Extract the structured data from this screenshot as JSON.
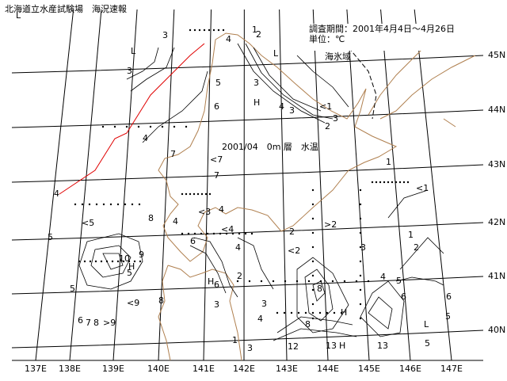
{
  "header": {
    "title": "北海道立水産試験場　海況速報"
  },
  "info": {
    "period": "調査期間：2001年4月4日～4月26日",
    "unit": "単位：℃",
    "ice": "海氷域"
  },
  "map": {
    "title": "2001/04　0m 層　水温",
    "lon_labels": [
      "137E",
      "138E",
      "139E",
      "140E",
      "141E",
      "142E",
      "143E",
      "144E",
      "145E",
      "146E",
      "147E"
    ],
    "lat_labels": [
      "45N",
      "44N",
      "43N",
      "42N",
      "41N",
      "40N"
    ],
    "contour_labels": [
      "3",
      "L",
      "3",
      "5",
      "6",
      "4",
      "3",
      "1",
      "2",
      "L",
      "H",
      "4",
      "<1",
      "3",
      "2",
      "3",
      "4",
      "7",
      "<7",
      "7",
      "4",
      "<5",
      "5",
      "10",
      "H",
      "8",
      "9",
      "5",
      "6",
      "7",
      "8",
      ">9",
      "<9",
      "8",
      "4",
      "<3",
      "4",
      "<4",
      "6",
      "H",
      "6",
      "2",
      "4",
      "3",
      "<2",
      "8",
      "12",
      "13",
      "H",
      "13",
      "L",
      "5",
      "6",
      "<1",
      "1",
      ">2",
      "2",
      "1",
      "2",
      "3",
      "4",
      "5",
      "6",
      "5",
      "3",
      "1",
      "H",
      "4",
      "3",
      "5",
      "8",
      "L"
    ]
  }
}
